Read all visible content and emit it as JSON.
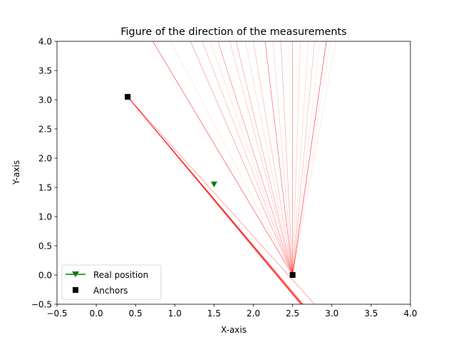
{
  "chart_data": {
    "type": "scatter",
    "title": "Figure of the direction of the measurements",
    "xlabel": "X-axis",
    "ylabel": "Y-axis",
    "xlim": [
      -0.5,
      4.0
    ],
    "ylim": [
      -0.5,
      4.0
    ],
    "xticks": [
      -0.5,
      0.0,
      0.5,
      1.0,
      1.5,
      2.0,
      2.5,
      3.0,
      3.5,
      4.0
    ],
    "yticks": [
      -0.5,
      0.0,
      0.5,
      1.0,
      1.5,
      2.0,
      2.5,
      3.0,
      3.5,
      4.0
    ],
    "xtick_labels": [
      "−0.5",
      "0.0",
      "0.5",
      "1.0",
      "1.5",
      "2.0",
      "2.5",
      "3.0",
      "3.5",
      "4.0"
    ],
    "ytick_labels": [
      "−0.5",
      "0.0",
      "0.5",
      "1.0",
      "1.5",
      "2.0",
      "2.5",
      "3.0",
      "3.5",
      "4.0"
    ],
    "grid": false,
    "legend_placement": "lower-left",
    "colors": {
      "real_position": "#008000",
      "anchors": "#000000",
      "measurement": "#ff0000"
    },
    "series": [
      {
        "name": "Real position",
        "marker": "triangle-down",
        "points": [
          [
            1.5,
            1.55
          ]
        ]
      },
      {
        "name": "Anchors",
        "marker": "square",
        "points": [
          [
            0.4,
            3.05
          ],
          [
            2.5,
            0.0
          ]
        ]
      }
    ],
    "measurement_lines": [
      {
        "from": [
          0.4,
          3.05
        ],
        "to": [
          2.62,
          -0.5
        ],
        "opacity": 1.0
      },
      {
        "from": [
          0.4,
          3.05
        ],
        "to": [
          2.61,
          -0.5
        ],
        "opacity": 0.9
      },
      {
        "from": [
          0.4,
          3.05
        ],
        "to": [
          2.625,
          -0.5
        ],
        "opacity": 0.8
      },
      {
        "from": [
          0.4,
          3.05
        ],
        "to": [
          2.6,
          -0.5
        ],
        "opacity": 0.7
      },
      {
        "from": [
          0.4,
          3.05
        ],
        "to": [
          2.64,
          -0.5
        ],
        "opacity": 0.6
      },
      {
        "from": [
          0.4,
          3.05
        ],
        "to": [
          2.78,
          -0.5
        ],
        "opacity": 0.55
      },
      {
        "from": [
          2.5,
          0.0
        ],
        "to": [
          0.72,
          4.0
        ],
        "opacity": 0.8
      },
      {
        "from": [
          2.5,
          0.0
        ],
        "to": [
          0.95,
          4.0
        ],
        "opacity": 0.15
      },
      {
        "from": [
          2.5,
          0.0
        ],
        "to": [
          1.2,
          4.0
        ],
        "opacity": 0.5
      },
      {
        "from": [
          2.5,
          0.0
        ],
        "to": [
          1.35,
          4.0
        ],
        "opacity": 0.35
      },
      {
        "from": [
          2.5,
          0.0
        ],
        "to": [
          1.45,
          4.0
        ],
        "opacity": 0.2
      },
      {
        "from": [
          2.5,
          0.0
        ],
        "to": [
          1.55,
          4.0
        ],
        "opacity": 0.55
      },
      {
        "from": [
          2.5,
          0.0
        ],
        "to": [
          1.7,
          4.0
        ],
        "opacity": 0.3
      },
      {
        "from": [
          2.5,
          0.0
        ],
        "to": [
          1.78,
          4.0
        ],
        "opacity": 0.45
      },
      {
        "from": [
          2.5,
          0.0
        ],
        "to": [
          1.9,
          4.0
        ],
        "opacity": 0.2
      },
      {
        "from": [
          2.5,
          0.0
        ],
        "to": [
          2.0,
          4.0
        ],
        "opacity": 0.35
      },
      {
        "from": [
          2.5,
          0.0
        ],
        "to": [
          2.15,
          4.0
        ],
        "opacity": 0.7
      },
      {
        "from": [
          2.5,
          0.0
        ],
        "to": [
          2.25,
          4.0
        ],
        "opacity": 0.25
      },
      {
        "from": [
          2.5,
          0.0
        ],
        "to": [
          2.35,
          4.0
        ],
        "opacity": 0.4
      },
      {
        "from": [
          2.5,
          0.0
        ],
        "to": [
          2.5,
          4.0
        ],
        "opacity": 0.6
      },
      {
        "from": [
          2.5,
          0.0
        ],
        "to": [
          2.6,
          4.0
        ],
        "opacity": 0.25
      },
      {
        "from": [
          2.5,
          0.0
        ],
        "to": [
          2.7,
          4.0
        ],
        "opacity": 0.2
      },
      {
        "from": [
          2.5,
          0.0
        ],
        "to": [
          2.78,
          4.0
        ],
        "opacity": 0.35
      },
      {
        "from": [
          2.5,
          0.0
        ],
        "to": [
          2.85,
          4.0
        ],
        "opacity": 0.15
      },
      {
        "from": [
          2.5,
          0.0
        ],
        "to": [
          2.93,
          4.0
        ],
        "opacity": 0.85
      },
      {
        "from": [
          2.5,
          0.0
        ],
        "to": [
          2.98,
          4.0
        ],
        "opacity": 0.12
      },
      {
        "from": [
          2.5,
          0.0
        ],
        "to": [
          3.05,
          4.0
        ],
        "opacity": 0.15
      }
    ]
  }
}
